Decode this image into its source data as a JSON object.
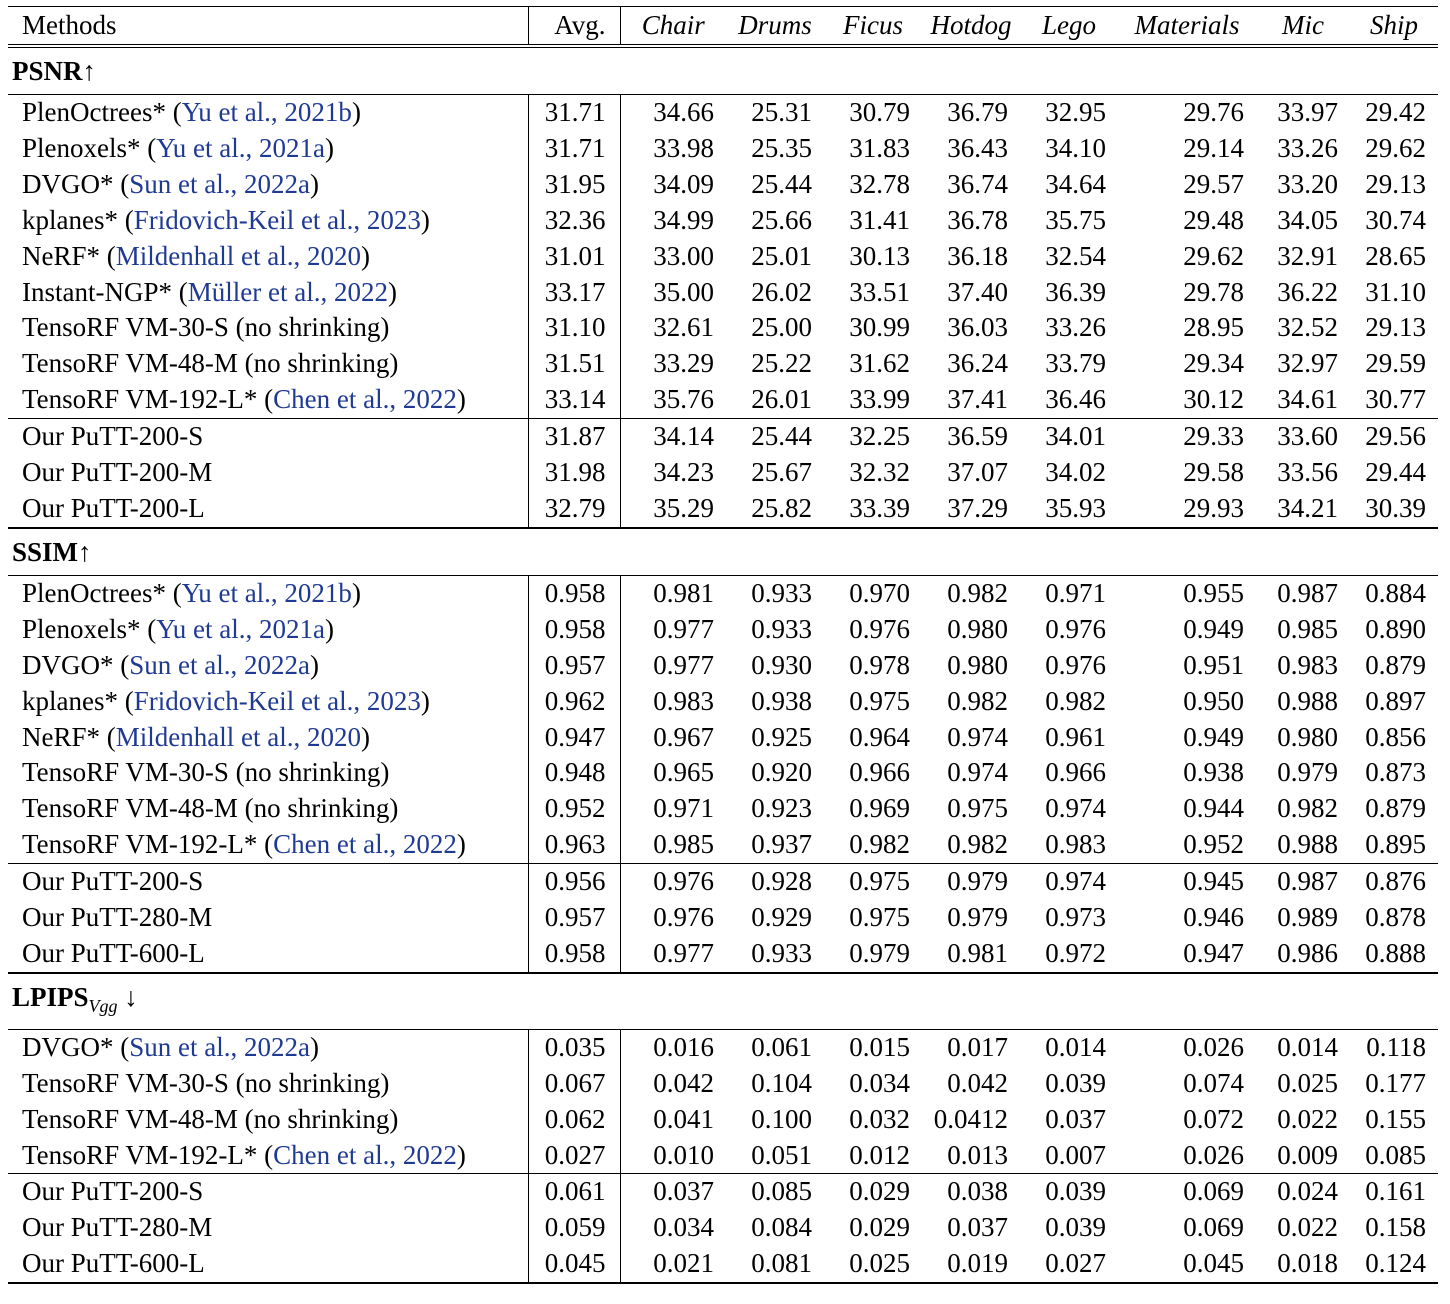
{
  "header": [
    "Methods",
    "Avg.",
    "Chair",
    "Drums",
    "Ficus",
    "Hotdog",
    "Lego",
    "Materials",
    "Mic",
    "Ship"
  ],
  "sections": [
    {
      "title": "PSNR↑",
      "title_sub": "",
      "title_suffix": "",
      "groups": [
        [
          {
            "method": "PlenOctrees* (",
            "cite": "Yu et al., 2021b",
            "tail": ")",
            "values": [
              "31.71",
              "34.66",
              "25.31",
              "30.79",
              "36.79",
              "32.95",
              "29.76",
              "33.97",
              "29.42"
            ]
          },
          {
            "method": "Plenoxels* (",
            "cite": "Yu et al., 2021a",
            "tail": ")",
            "values": [
              "31.71",
              "33.98",
              "25.35",
              "31.83",
              "36.43",
              "34.10",
              "29.14",
              "33.26",
              "29.62"
            ]
          },
          {
            "method": "DVGO* (",
            "cite": "Sun et al., 2022a",
            "tail": ")",
            "values": [
              "31.95",
              "34.09",
              "25.44",
              "32.78",
              "36.74",
              "34.64",
              "29.57",
              "33.20",
              "29.13"
            ]
          },
          {
            "method": "kplanes* (",
            "cite": "Fridovich-Keil et al., 2023",
            "tail": ")",
            "values": [
              "32.36",
              "34.99",
              "25.66",
              "31.41",
              "36.78",
              "35.75",
              "29.48",
              "34.05",
              "30.74"
            ]
          },
          {
            "method": "NeRF* (",
            "cite": "Mildenhall et al., 2020",
            "tail": ")",
            "values": [
              "31.01",
              "33.00",
              "25.01",
              "30.13",
              "36.18",
              "32.54",
              "29.62",
              "32.91",
              "28.65"
            ]
          },
          {
            "method": "Instant-NGP* (",
            "cite": "Müller et al., 2022",
            "tail": ")",
            "values": [
              "33.17",
              "35.00",
              "26.02",
              "33.51",
              "37.40",
              "36.39",
              "29.78",
              "36.22",
              "31.10"
            ]
          },
          {
            "method": "TensoRF VM-30-S (no shrinking)",
            "cite": "",
            "tail": "",
            "values": [
              "31.10",
              "32.61",
              "25.00",
              "30.99",
              "36.03",
              "33.26",
              "28.95",
              "32.52",
              "29.13"
            ]
          },
          {
            "method": "TensoRF VM-48-M (no shrinking)",
            "cite": "",
            "tail": "",
            "values": [
              "31.51",
              "33.29",
              "25.22",
              "31.62",
              "36.24",
              "33.79",
              "29.34",
              "32.97",
              "29.59"
            ]
          },
          {
            "method": "TensoRF VM-192-L* (",
            "cite": "Chen et al., 2022",
            "tail": ")",
            "values": [
              "33.14",
              "35.76",
              "26.01",
              "33.99",
              "37.41",
              "36.46",
              "30.12",
              "34.61",
              "30.77"
            ]
          }
        ],
        [
          {
            "method": "Our PuTT-200-S",
            "cite": "",
            "tail": "",
            "values": [
              "31.87",
              "34.14",
              "25.44",
              "32.25",
              "36.59",
              "34.01",
              "29.33",
              "33.60",
              "29.56"
            ]
          },
          {
            "method": "Our PuTT-200-M",
            "cite": "",
            "tail": "",
            "values": [
              "31.98",
              "34.23",
              "25.67",
              "32.32",
              "37.07",
              "34.02",
              "29.58",
              "33.56",
              "29.44"
            ]
          },
          {
            "method": "Our PuTT-200-L",
            "cite": "",
            "tail": "",
            "values": [
              "32.79",
              "35.29",
              "25.82",
              "33.39",
              "37.29",
              "35.93",
              "29.93",
              "34.21",
              "30.39"
            ]
          }
        ]
      ]
    },
    {
      "title": "SSIM↑",
      "title_sub": "",
      "title_suffix": "",
      "groups": [
        [
          {
            "method": "PlenOctrees* (",
            "cite": "Yu et al., 2021b",
            "tail": ")",
            "values": [
              "0.958",
              "0.981",
              "0.933",
              "0.970",
              "0.982",
              "0.971",
              "0.955",
              "0.987",
              "0.884"
            ]
          },
          {
            "method": "Plenoxels* (",
            "cite": "Yu et al., 2021a",
            "tail": ")",
            "values": [
              "0.958",
              "0.977",
              "0.933",
              "0.976",
              "0.980",
              "0.976",
              "0.949",
              "0.985",
              "0.890"
            ]
          },
          {
            "method": "DVGO* (",
            "cite": "Sun et al., 2022a",
            "tail": ")",
            "values": [
              "0.957",
              "0.977",
              "0.930",
              "0.978",
              "0.980",
              "0.976",
              "0.951",
              "0.983",
              "0.879"
            ]
          },
          {
            "method": "kplanes* (",
            "cite": "Fridovich-Keil et al., 2023",
            "tail": ")",
            "values": [
              "0.962",
              "0.983",
              "0.938",
              "0.975",
              "0.982",
              "0.982",
              "0.950",
              "0.988",
              "0.897"
            ]
          },
          {
            "method": "NeRF* (",
            "cite": "Mildenhall et al., 2020",
            "tail": ")",
            "values": [
              "0.947",
              "0.967",
              "0.925",
              "0.964",
              "0.974",
              "0.961",
              "0.949",
              "0.980",
              "0.856"
            ]
          },
          {
            "method": "TensoRF VM-30-S (no shrinking)",
            "cite": "",
            "tail": "",
            "values": [
              "0.948",
              "0.965",
              "0.920",
              "0.966",
              "0.974",
              "0.966",
              "0.938",
              "0.979",
              "0.873"
            ]
          },
          {
            "method": "TensoRF VM-48-M (no shrinking)",
            "cite": "",
            "tail": "",
            "values": [
              "0.952",
              "0.971",
              "0.923",
              "0.969",
              "0.975",
              "0.974",
              "0.944",
              "0.982",
              "0.879"
            ]
          },
          {
            "method": "TensoRF VM-192-L* (",
            "cite": "Chen et al., 2022",
            "tail": ")",
            "values": [
              "0.963",
              "0.985",
              "0.937",
              "0.982",
              "0.982",
              "0.983",
              "0.952",
              "0.988",
              "0.895"
            ]
          }
        ],
        [
          {
            "method": "Our PuTT-200-S",
            "cite": "",
            "tail": "",
            "values": [
              "0.956",
              "0.976",
              "0.928",
              "0.975",
              "0.979",
              "0.974",
              "0.945",
              "0.987",
              "0.876"
            ]
          },
          {
            "method": "Our PuTT-280-M",
            "cite": "",
            "tail": "",
            "values": [
              "0.957",
              "0.976",
              "0.929",
              "0.975",
              "0.979",
              "0.973",
              "0.946",
              "0.989",
              "0.878"
            ]
          },
          {
            "method": "Our PuTT-600-L",
            "cite": "",
            "tail": "",
            "values": [
              "0.958",
              "0.977",
              "0.933",
              "0.979",
              "0.981",
              "0.972",
              "0.947",
              "0.986",
              "0.888"
            ]
          }
        ]
      ]
    },
    {
      "title": "LPIPS",
      "title_sub": "Vgg",
      "title_suffix": " ↓",
      "groups": [
        [
          {
            "method": "DVGO* (",
            "cite": "Sun et al., 2022a",
            "tail": ")",
            "values": [
              "0.035",
              "0.016",
              "0.061",
              "0.015",
              "0.017",
              "0.014",
              "0.026",
              "0.014",
              "0.118"
            ]
          },
          {
            "method": "TensoRF VM-30-S (no shrinking)",
            "cite": "",
            "tail": "",
            "values": [
              "0.067",
              "0.042",
              "0.104",
              "0.034",
              "0.042",
              "0.039",
              "0.074",
              "0.025",
              "0.177"
            ]
          },
          {
            "method": "TensoRF VM-48-M (no shrinking)",
            "cite": "",
            "tail": "",
            "values": [
              "0.062",
              "0.041",
              "0.100",
              "0.032",
              "0.0412",
              "0.037",
              "0.072",
              "0.022",
              "0.155"
            ]
          },
          {
            "method": "TensoRF VM-192-L* (",
            "cite": "Chen et al., 2022",
            "tail": ")",
            "values": [
              "0.027",
              "0.010",
              "0.051",
              "0.012",
              "0.013",
              "0.007",
              "0.026",
              "0.009",
              "0.085"
            ]
          }
        ],
        [
          {
            "method": "Our PuTT-200-S",
            "cite": "",
            "tail": "",
            "values": [
              "0.061",
              "0.037",
              "0.085",
              "0.029",
              "0.038",
              "0.039",
              "0.069",
              "0.024",
              "0.161"
            ]
          },
          {
            "method": "Our PuTT-280-M",
            "cite": "",
            "tail": "",
            "values": [
              "0.059",
              "0.034",
              "0.084",
              "0.029",
              "0.037",
              "0.039",
              "0.069",
              "0.022",
              "0.158"
            ]
          },
          {
            "method": "Our PuTT-600-L",
            "cite": "",
            "tail": "",
            "values": [
              "0.045",
              "0.021",
              "0.081",
              "0.025",
              "0.019",
              "0.027",
              "0.045",
              "0.018",
              "0.124"
            ]
          }
        ]
      ]
    }
  ]
}
